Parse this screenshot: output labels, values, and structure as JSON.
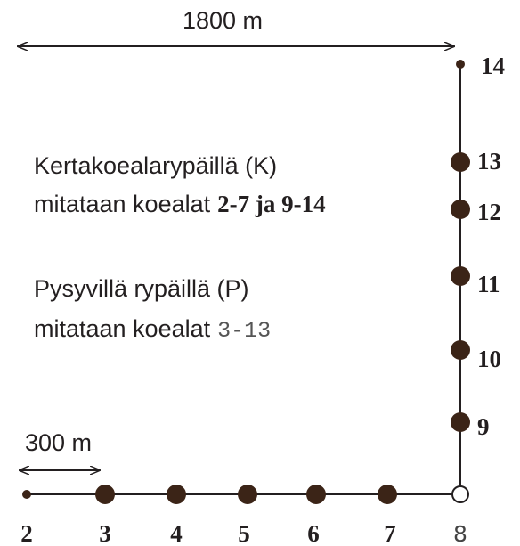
{
  "scale_top": "1800 m",
  "scale_bottom": "300 m",
  "notes": [
    {
      "line1": "Kertakoealarypäillä (K)",
      "line2_prefix": "mitataan koealat",
      "line2_range": "2-7 ja 9-14"
    },
    {
      "line1": "Pysyvillä rypäillä (P)",
      "line2_prefix": "mitataan koealat",
      "line2_range": "3-13"
    }
  ],
  "bottom_points": [
    "2",
    "3",
    "4",
    "5",
    "6",
    "7",
    "8"
  ],
  "side_points": [
    "9",
    "10",
    "11",
    "12",
    "13",
    "14"
  ]
}
